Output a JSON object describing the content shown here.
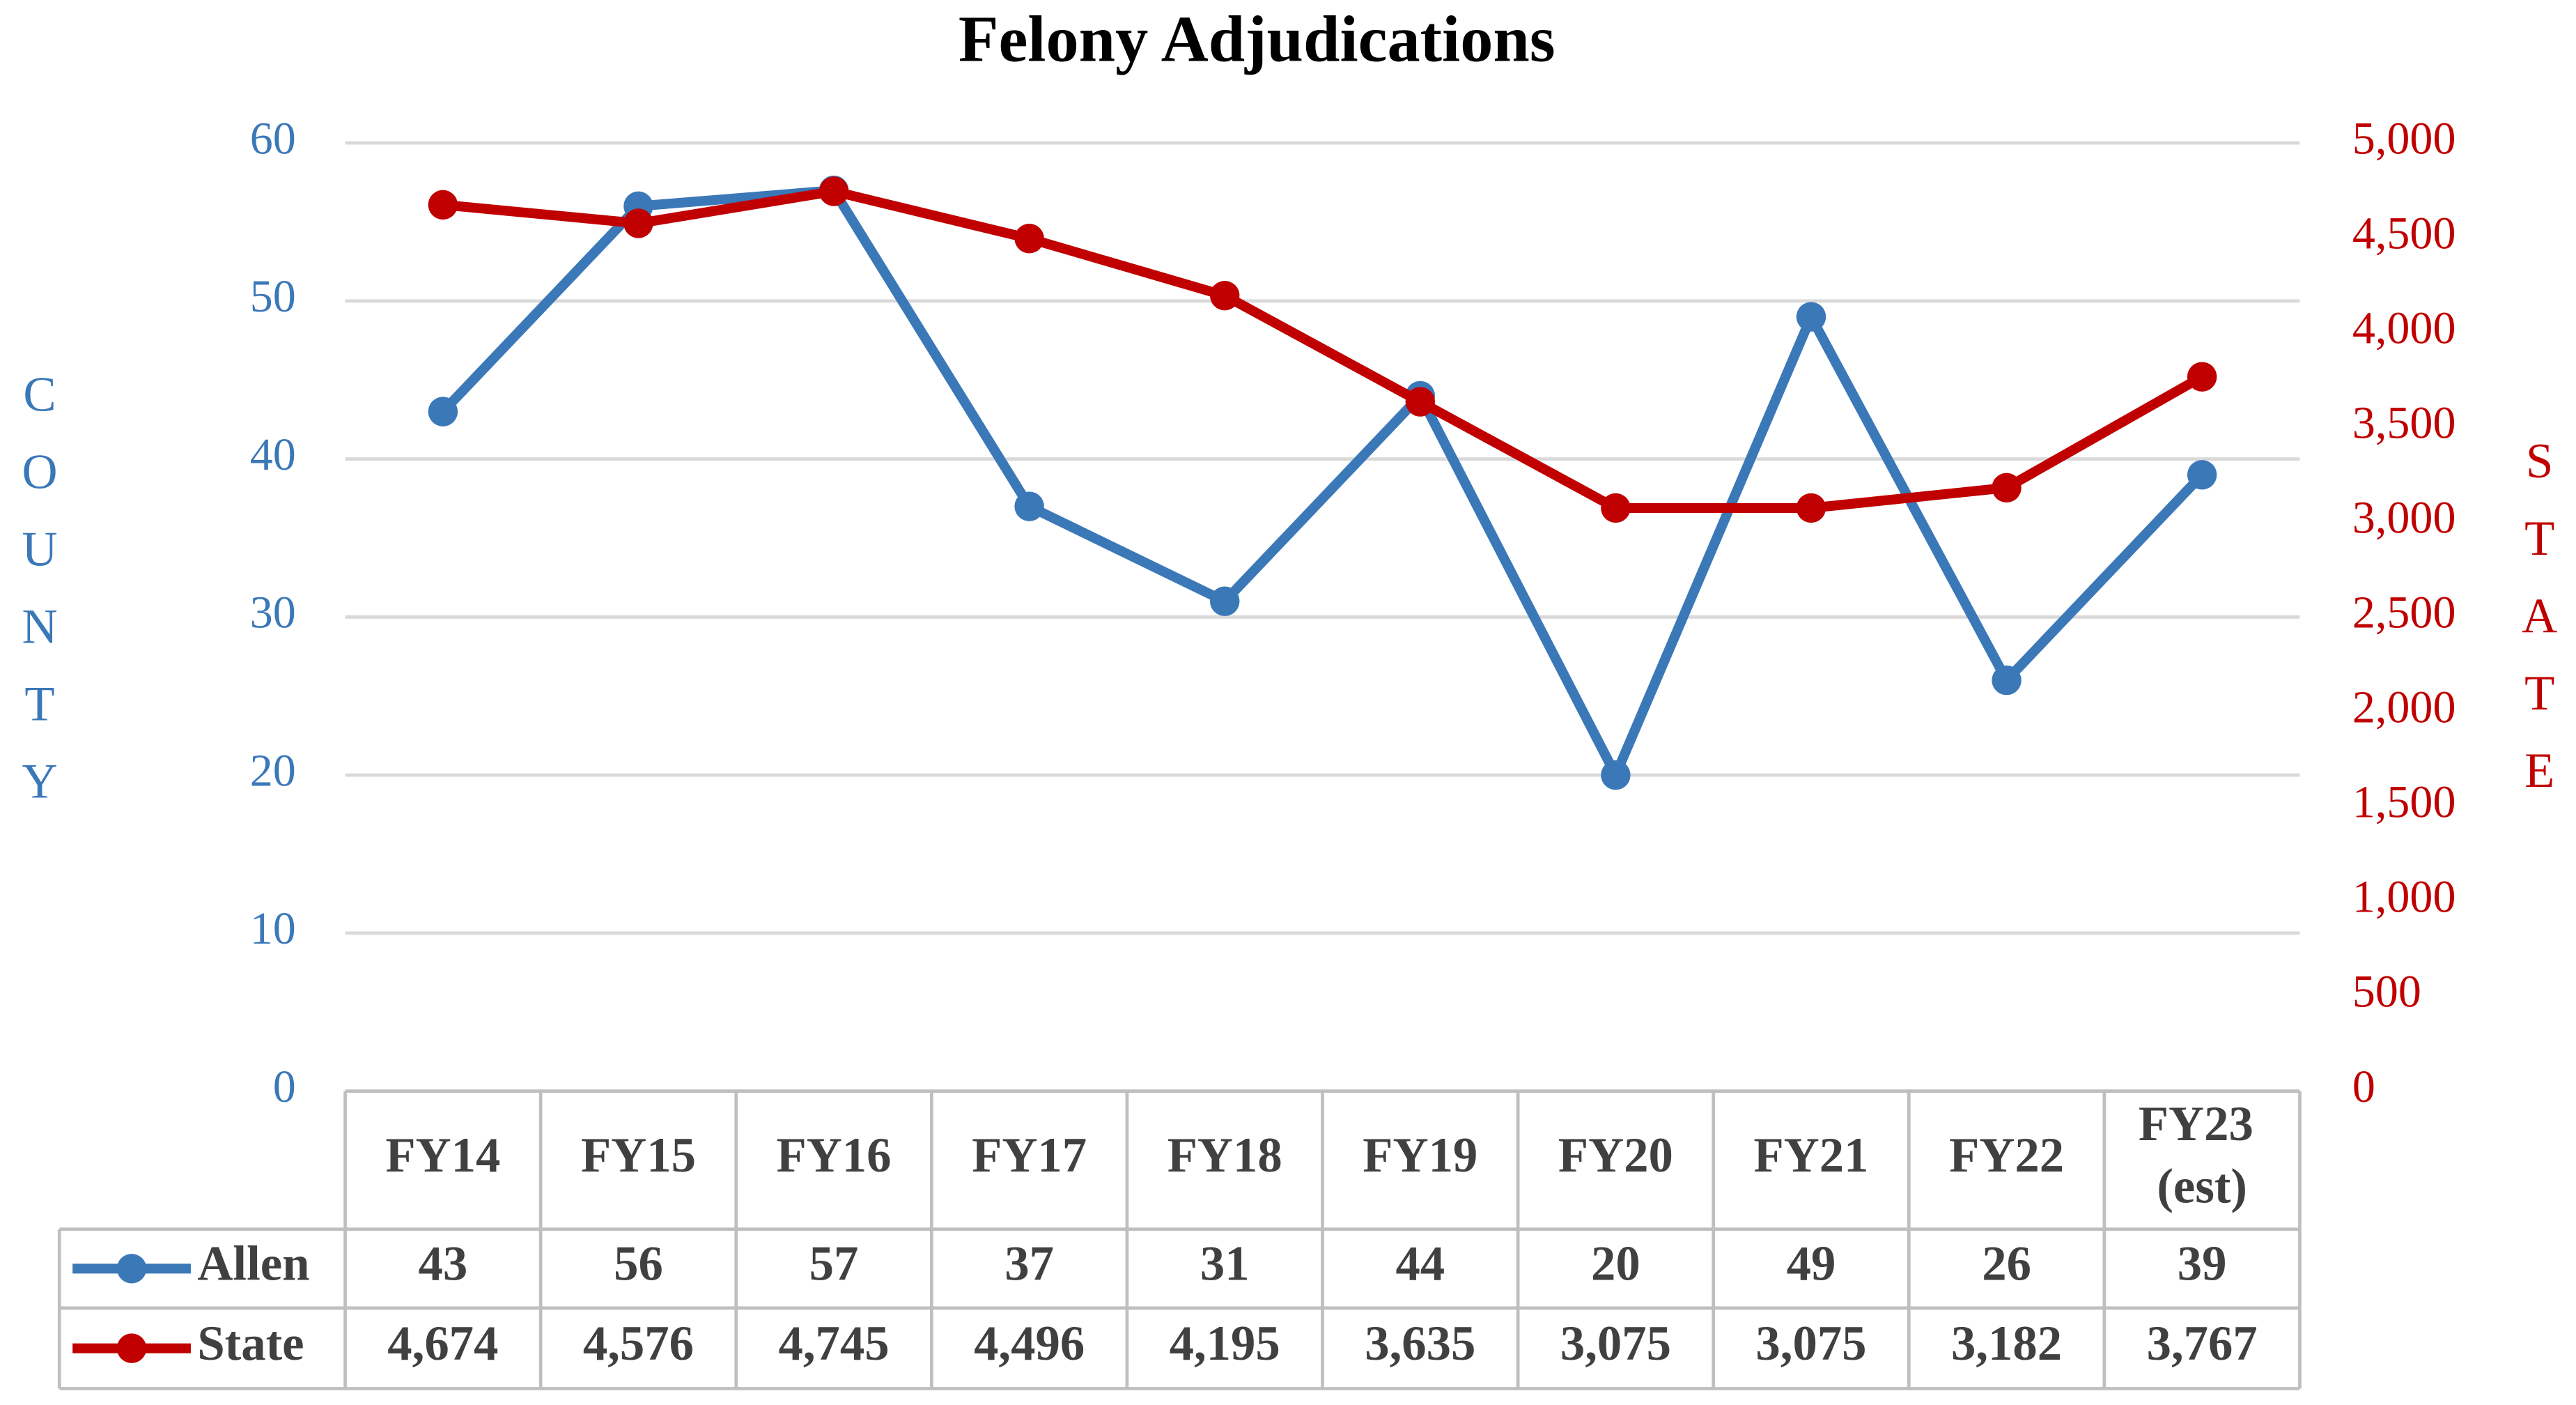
{
  "chart_data": {
    "type": "line",
    "title": "Felony Adjudications",
    "y_label": "COUNTY",
    "y2_label": "STATE",
    "categories": [
      "FY14",
      "FY15",
      "FY16",
      "FY17",
      "FY18",
      "FY19",
      "FY20",
      "FY21",
      "FY22",
      "FY23 (est)"
    ],
    "series": [
      {
        "name": "Allen",
        "color": "#3b78b8",
        "values": [
          43,
          56,
          57,
          37,
          31,
          44,
          20,
          49,
          26,
          39
        ]
      },
      {
        "name": "State",
        "color": "#c00000",
        "axis": "y2",
        "values": [
          4674,
          4576,
          4745,
          4496,
          4195,
          3635,
          3075,
          3075,
          3182,
          3767
        ],
        "value_labels": [
          "4,674",
          "4,576",
          "4,745",
          "4,496",
          "4,195",
          "3,635",
          "3,075",
          "3,075",
          "3,182",
          "3,767"
        ]
      }
    ],
    "ylim": [
      0,
      60
    ],
    "yticks": [
      0,
      10,
      20,
      30,
      40,
      50,
      60
    ],
    "y2lim": [
      0,
      5000
    ],
    "y2ticks": [
      0,
      500,
      {
        "value": 1000,
        "label": "1,000"
      },
      {
        "value": 1500,
        "label": "1,500"
      },
      {
        "value": 2000,
        "label": "2,000"
      },
      {
        "value": 2500,
        "label": "2,500"
      },
      {
        "value": 3000,
        "label": "3,000"
      },
      {
        "value": 3500,
        "label": "3,500"
      },
      {
        "value": 4000,
        "label": "4,000"
      },
      {
        "value": 4500,
        "label": "4,500"
      },
      {
        "value": 5000,
        "label": "5,000"
      }
    ],
    "grid": true,
    "data_table": true
  }
}
